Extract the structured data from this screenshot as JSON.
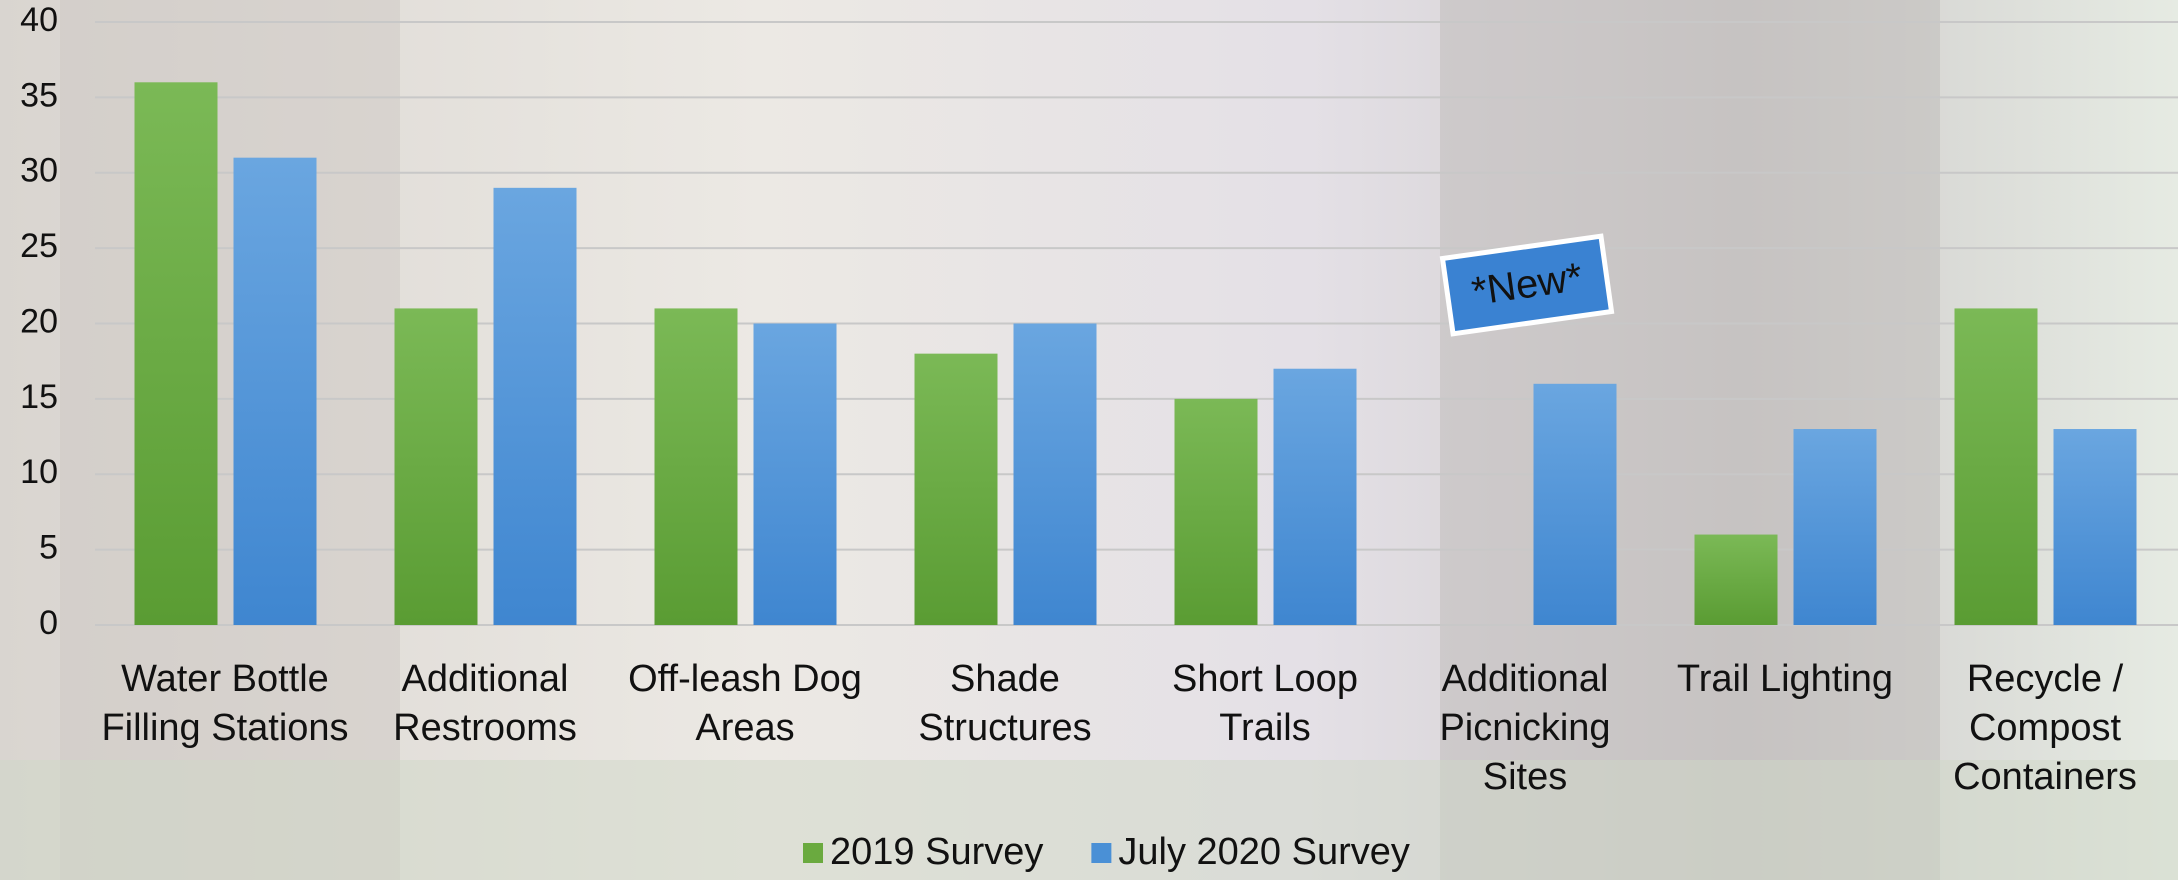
{
  "chart_data": {
    "type": "bar",
    "categories": [
      [
        "Water Bottle",
        "Filling Stations"
      ],
      [
        "Additional",
        "Restrooms"
      ],
      [
        "Off-leash Dog",
        "Areas"
      ],
      [
        "Shade",
        "Structures"
      ],
      [
        "Short Loop",
        "Trails"
      ],
      [
        "Additional",
        "Picnicking",
        "Sites"
      ],
      [
        "Trail Lighting"
      ],
      [
        "Recycle /",
        "Compost",
        "Containers"
      ]
    ],
    "series": [
      {
        "name": "2019 Survey",
        "color": "#6aaa3f",
        "values": [
          36,
          21,
          21,
          18,
          15,
          null,
          6,
          21
        ]
      },
      {
        "name": "July 2020 Survey",
        "color": "#4a90d6",
        "values": [
          31,
          29,
          20,
          20,
          17,
          16,
          13,
          13
        ]
      }
    ],
    "annotation": "*New*",
    "ylim": [
      0,
      40
    ],
    "yticks": [
      0,
      5,
      10,
      15,
      20,
      25,
      30,
      35,
      40
    ],
    "grid": true
  }
}
